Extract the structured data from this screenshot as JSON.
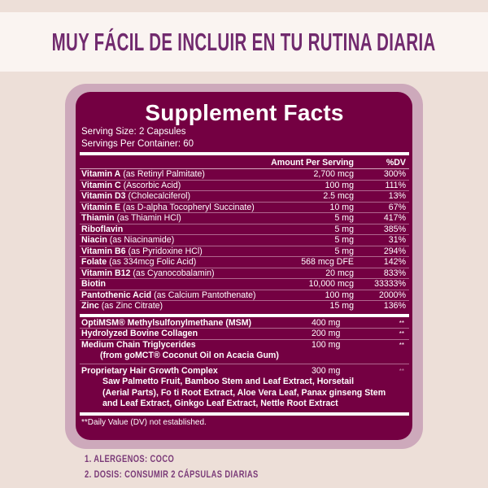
{
  "banner": {
    "title": "MUY FÁCIL DE INCLUIR EN TU RUTINA DIARIA"
  },
  "facts": {
    "title": "Supplement Facts",
    "serving_size": "Serving Size: 2 Capsules",
    "servings_per_container": "Servings Per Container: 60",
    "header": {
      "amount": "Amount Per Serving",
      "dv": "%DV"
    },
    "vitamins": [
      {
        "name": "Vitamin A",
        "desc": " (as Retinyl Palmitate)",
        "amount": "2,700 mcg",
        "dv": "300%"
      },
      {
        "name": "Vitamin C",
        "desc": " (Ascorbic Acid)",
        "amount": "100 mg",
        "dv": "111%"
      },
      {
        "name": "Vitamin D3",
        "desc": " (Cholecalciferol)",
        "amount": "2.5 mcg",
        "dv": "13%"
      },
      {
        "name": "Vitamin E",
        "desc": " (as D-alpha Tocopheryl Succinate)",
        "amount": "10 mg",
        "dv": "67%"
      },
      {
        "name": "Thiamin",
        "desc": " (as Thiamin HCl)",
        "amount": "5 mg",
        "dv": "417%"
      },
      {
        "name": "Riboflavin",
        "desc": "",
        "amount": "5 mg",
        "dv": "385%"
      },
      {
        "name": "Niacin",
        "desc": " (as Niacinamide)",
        "amount": "5 mg",
        "dv": "31%"
      },
      {
        "name": "Vitamin B6",
        "desc": " (as Pyridoxine HCl)",
        "amount": "5 mg",
        "dv": "294%"
      },
      {
        "name": "Folate",
        "desc": " (as 334mcg Folic Acid)",
        "amount": "568 mcg DFE",
        "dv": "142%"
      },
      {
        "name": "Vitamin B12",
        "desc": " (as Cyanocobalamin)",
        "amount": "20 mcg",
        "dv": "833%"
      },
      {
        "name": "Biotin",
        "desc": "",
        "amount": "10,000 mcg",
        "dv": "33333%"
      },
      {
        "name": "Pantothenic Acid",
        "desc": " (as Calcium Pantothenate)",
        "amount": "100 mg",
        "dv": "2000%"
      },
      {
        "name": "Zinc",
        "desc": " (as Zinc Citrate)",
        "amount": "15 mg",
        "dv": "136%"
      }
    ],
    "others": [
      {
        "name": "OptiMSM® Methylsulfonylmethane (MSM)",
        "amount": "400 mg",
        "dv": "**"
      },
      {
        "name": "Hydrolyzed Bovine Collagen",
        "amount": "200 mg",
        "dv": "**"
      },
      {
        "name": "Medium Chain Triglycerides",
        "amount": "100 mg",
        "dv": "**",
        "sub": "(from goMCT® Coconut Oil on Acacia Gum)"
      }
    ],
    "blend": {
      "name": "Proprietary Hair Growth Complex",
      "amount": "300 mg",
      "dv": "**",
      "lines": [
        "Saw Palmetto Fruit, Bamboo Stem and Leaf Extract, Horsetail",
        "(Aerial Parts), Fo ti Root Extract, Aloe Vera Leaf, Panax ginseng Stem",
        "and Leaf Extract, Ginkgo Leaf Extract, Nettle Root Extract"
      ]
    },
    "note": "**Daily Value (DV) not established."
  },
  "footer": [
    "1. ALERGENOS: COCO",
    "2. DOSIS: CONSUMIR 2 CÁPSULAS DIARIAS"
  ]
}
